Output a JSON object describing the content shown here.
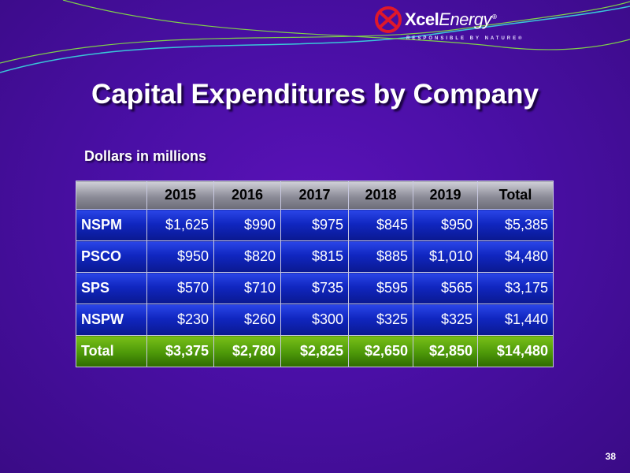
{
  "brand": {
    "name_bold": "Xcel",
    "name_light": "Energy",
    "registered_mark": "®",
    "tagline": "RESPONSIBLE BY NATURE®"
  },
  "slide": {
    "title": "Capital Expenditures by Company",
    "subtitle": "Dollars in millions",
    "page_number": "38"
  },
  "table": {
    "header": [
      "",
      "2015",
      "2016",
      "2017",
      "2018",
      "2019",
      "Total"
    ],
    "rows": [
      {
        "label": "NSPM",
        "values": [
          "$1,625",
          "$990",
          "$975",
          "$845",
          "$950",
          "$5,385"
        ]
      },
      {
        "label": "PSCO",
        "values": [
          "$950",
          "$820",
          "$815",
          "$885",
          "$1,010",
          "$4,480"
        ]
      },
      {
        "label": "SPS",
        "values": [
          "$570",
          "$710",
          "$735",
          "$595",
          "$565",
          "$3,175"
        ]
      },
      {
        "label": "NSPW",
        "values": [
          "$230",
          "$260",
          "$300",
          "$325",
          "$325",
          "$1,440"
        ]
      }
    ],
    "total": {
      "label": "Total",
      "values": [
        "$3,375",
        "$2,780",
        "$2,825",
        "$2,650",
        "$2,850",
        "$14,480"
      ]
    }
  },
  "colors": {
    "background": "#4a0fa6",
    "header_row": "#8c8c98",
    "data_row": "#1026c0",
    "total_row": "#4c9808",
    "logo_mark": "#e0182a"
  }
}
